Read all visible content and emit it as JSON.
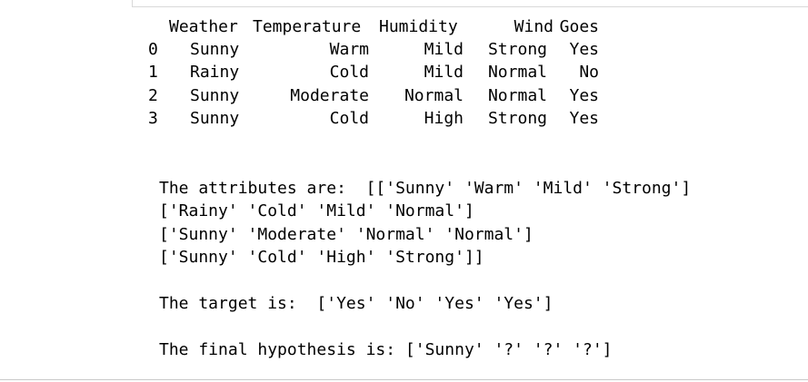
{
  "dataframe": {
    "columns": [
      "Weather",
      "Temperature",
      "Humidity",
      "Wind",
      "Goes"
    ],
    "rows": [
      {
        "index": "0",
        "cells": [
          "Sunny",
          "Warm",
          "Mild",
          "Strong",
          "Yes"
        ]
      },
      {
        "index": "1",
        "cells": [
          "Rainy",
          "Cold",
          "Mild",
          "Normal",
          "No"
        ]
      },
      {
        "index": "2",
        "cells": [
          "Sunny",
          "Moderate",
          "Normal",
          "Normal",
          "Yes"
        ]
      },
      {
        "index": "3",
        "cells": [
          "Sunny",
          "Cold",
          "High",
          "Strong",
          "Yes"
        ]
      }
    ]
  },
  "output": {
    "attributes_line_1": "The attributes are:  [['Sunny' 'Warm' 'Mild' 'Strong']",
    "attributes_line_2": "['Rainy' 'Cold' 'Mild' 'Normal']",
    "attributes_line_3": "['Sunny' 'Moderate' 'Normal' 'Normal']",
    "attributes_line_4": "['Sunny' 'Cold' 'High' 'Strong']]",
    "target_line": "The target is:  ['Yes' 'No' 'Yes' 'Yes']",
    "hypothesis_line": "The final hypothesis is: ['Sunny' '?' '?' '?']"
  }
}
